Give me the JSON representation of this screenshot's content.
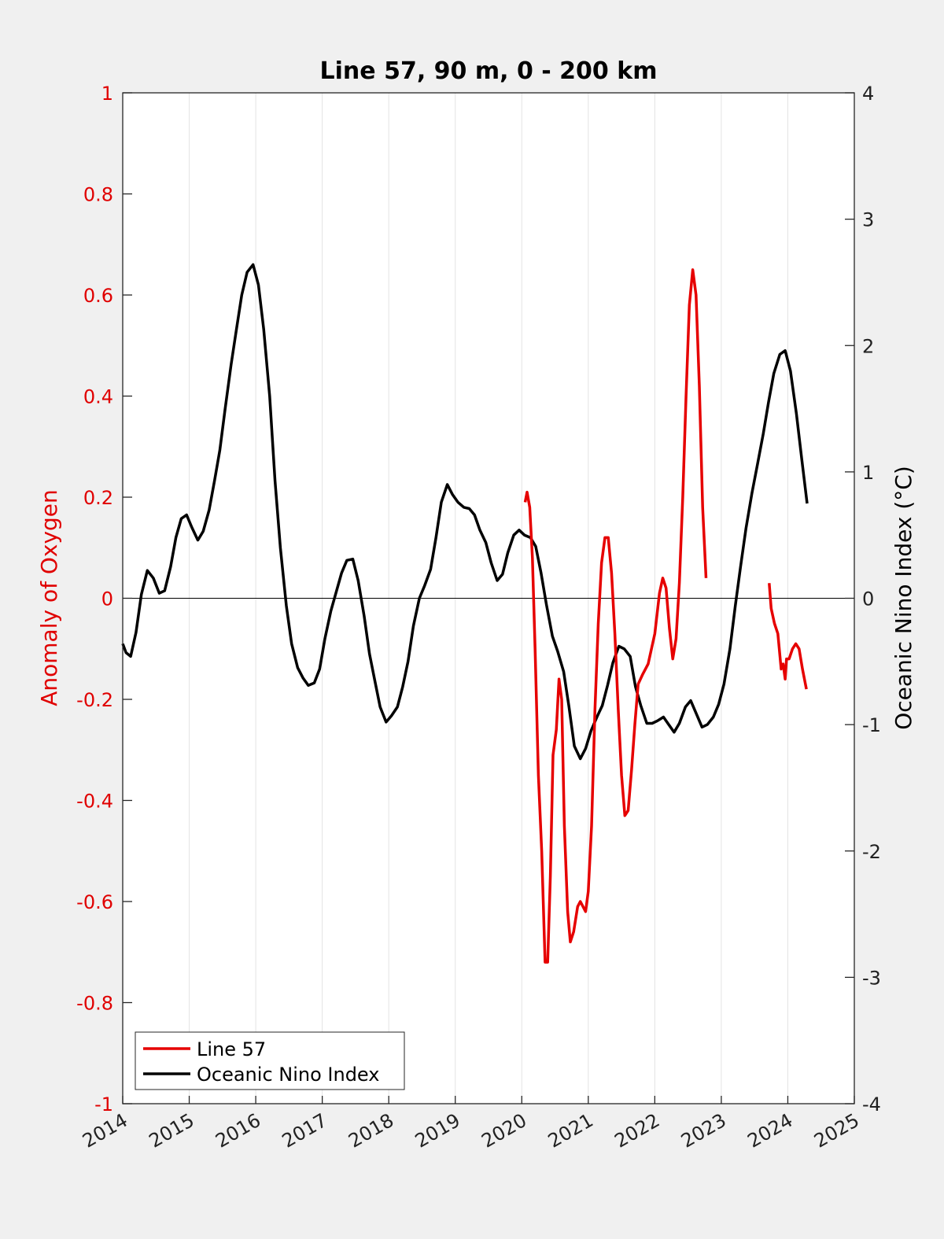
{
  "chart_data": {
    "type": "line",
    "title": "Line 57, 90 m, 0 - 200 km",
    "ylabel_left": "Anomaly of Oxygen",
    "ylabel_right": "Oceanic Nino Index (°C)",
    "xlim": [
      2014,
      2025
    ],
    "ylim_left": [
      -1,
      1
    ],
    "ylim_right": [
      -4,
      4
    ],
    "x_ticks": [
      "2014",
      "2015",
      "2016",
      "2017",
      "2018",
      "2019",
      "2020",
      "2021",
      "2022",
      "2023",
      "2024",
      "2025"
    ],
    "y_left_ticks": [
      "-1",
      "-0.8",
      "-0.6",
      "-0.4",
      "-0.2",
      "0",
      "0.2",
      "0.4",
      "0.6",
      "0.8",
      "1"
    ],
    "y_right_ticks": [
      "-4",
      "-3",
      "-2",
      "-1",
      "0",
      "1",
      "2",
      "3",
      "4"
    ],
    "grid": "vertical",
    "zero_line": true,
    "legend": {
      "position": "bottom-left",
      "entries": [
        "Line 57",
        "Oceanic Nino Index"
      ]
    },
    "colors": {
      "line57": "#e60000",
      "oni": "#000000",
      "left_axis": "#e00000"
    },
    "series": [
      {
        "name": "Line 57",
        "axis": "left",
        "segments": [
          [
            [
              2020.05,
              0.19
            ],
            [
              2020.08,
              0.21
            ],
            [
              2020.12,
              0.18
            ],
            [
              2020.16,
              0.08
            ],
            [
              2020.2,
              -0.1
            ],
            [
              2020.25,
              -0.35
            ],
            [
              2020.3,
              -0.5
            ],
            [
              2020.35,
              -0.72
            ],
            [
              2020.39,
              -0.72
            ],
            [
              2020.43,
              -0.55
            ],
            [
              2020.47,
              -0.31
            ],
            [
              2020.52,
              -0.26
            ],
            [
              2020.56,
              -0.16
            ],
            [
              2020.6,
              -0.2
            ],
            [
              2020.64,
              -0.45
            ],
            [
              2020.69,
              -0.62
            ],
            [
              2020.73,
              -0.68
            ],
            [
              2020.78,
              -0.66
            ],
            [
              2020.84,
              -0.61
            ],
            [
              2020.88,
              -0.6
            ],
            [
              2020.92,
              -0.61
            ],
            [
              2020.96,
              -0.62
            ],
            [
              2021.0,
              -0.58
            ],
            [
              2021.05,
              -0.45
            ],
            [
              2021.1,
              -0.22
            ],
            [
              2021.15,
              -0.05
            ],
            [
              2021.2,
              0.07
            ],
            [
              2021.25,
              0.12
            ],
            [
              2021.3,
              0.12
            ],
            [
              2021.35,
              0.05
            ],
            [
              2021.4,
              -0.07
            ],
            [
              2021.45,
              -0.22
            ],
            [
              2021.5,
              -0.35
            ],
            [
              2021.55,
              -0.43
            ],
            [
              2021.6,
              -0.42
            ],
            [
              2021.65,
              -0.34
            ],
            [
              2021.7,
              -0.25
            ],
            [
              2021.75,
              -0.17
            ],
            [
              2021.82,
              -0.15
            ],
            [
              2021.9,
              -0.13
            ],
            [
              2022.0,
              -0.07
            ],
            [
              2022.07,
              0.01
            ],
            [
              2022.12,
              0.04
            ],
            [
              2022.17,
              0.02
            ],
            [
              2022.22,
              -0.06
            ],
            [
              2022.27,
              -0.12
            ],
            [
              2022.32,
              -0.08
            ],
            [
              2022.37,
              0.03
            ],
            [
              2022.42,
              0.2
            ],
            [
              2022.47,
              0.4
            ],
            [
              2022.52,
              0.58
            ],
            [
              2022.57,
              0.65
            ],
            [
              2022.62,
              0.6
            ],
            [
              2022.67,
              0.42
            ],
            [
              2022.72,
              0.18
            ],
            [
              2022.77,
              0.04
            ]
          ],
          [
            [
              2023.72,
              0.03
            ],
            [
              2023.75,
              -0.02
            ],
            [
              2023.8,
              -0.05
            ],
            [
              2023.85,
              -0.07
            ],
            [
              2023.9,
              -0.14
            ],
            [
              2023.93,
              -0.13
            ],
            [
              2023.96,
              -0.16
            ],
            [
              2023.98,
              -0.12
            ],
            [
              2024.02,
              -0.12
            ],
            [
              2024.07,
              -0.1
            ],
            [
              2024.12,
              -0.09
            ],
            [
              2024.17,
              -0.1
            ],
            [
              2024.22,
              -0.14
            ],
            [
              2024.28,
              -0.18
            ]
          ]
        ]
      },
      {
        "name": "Oceanic Nino Index",
        "axis": "right",
        "points": [
          [
            2014.0,
            -0.36
          ],
          [
            2014.05,
            -0.43
          ],
          [
            2014.12,
            -0.46
          ],
          [
            2014.2,
            -0.27
          ],
          [
            2014.28,
            0.03
          ],
          [
            2014.37,
            0.22
          ],
          [
            2014.46,
            0.16
          ],
          [
            2014.55,
            0.04
          ],
          [
            2014.63,
            0.06
          ],
          [
            2014.72,
            0.25
          ],
          [
            2014.8,
            0.48
          ],
          [
            2014.88,
            0.63
          ],
          [
            2014.96,
            0.66
          ],
          [
            2015.04,
            0.56
          ],
          [
            2015.13,
            0.46
          ],
          [
            2015.21,
            0.53
          ],
          [
            2015.3,
            0.7
          ],
          [
            2015.38,
            0.93
          ],
          [
            2015.46,
            1.17
          ],
          [
            2015.54,
            1.5
          ],
          [
            2015.63,
            1.85
          ],
          [
            2015.71,
            2.13
          ],
          [
            2015.79,
            2.4
          ],
          [
            2015.87,
            2.58
          ],
          [
            2015.96,
            2.64
          ],
          [
            2016.04,
            2.48
          ],
          [
            2016.12,
            2.13
          ],
          [
            2016.21,
            1.6
          ],
          [
            2016.29,
            0.93
          ],
          [
            2016.37,
            0.4
          ],
          [
            2016.46,
            -0.06
          ],
          [
            2016.54,
            -0.36
          ],
          [
            2016.63,
            -0.55
          ],
          [
            2016.71,
            -0.63
          ],
          [
            2016.79,
            -0.69
          ],
          [
            2016.88,
            -0.67
          ],
          [
            2016.96,
            -0.56
          ],
          [
            2017.04,
            -0.32
          ],
          [
            2017.13,
            -0.1
          ],
          [
            2017.21,
            0.05
          ],
          [
            2017.29,
            0.2
          ],
          [
            2017.37,
            0.3
          ],
          [
            2017.46,
            0.31
          ],
          [
            2017.54,
            0.14
          ],
          [
            2017.63,
            -0.14
          ],
          [
            2017.71,
            -0.44
          ],
          [
            2017.79,
            -0.65
          ],
          [
            2017.87,
            -0.86
          ],
          [
            2017.96,
            -0.98
          ],
          [
            2018.04,
            -0.93
          ],
          [
            2018.13,
            -0.86
          ],
          [
            2018.21,
            -0.7
          ],
          [
            2018.29,
            -0.5
          ],
          [
            2018.37,
            -0.22
          ],
          [
            2018.46,
            0.0
          ],
          [
            2018.54,
            0.1
          ],
          [
            2018.63,
            0.23
          ],
          [
            2018.71,
            0.48
          ],
          [
            2018.79,
            0.76
          ],
          [
            2018.88,
            0.9
          ],
          [
            2018.96,
            0.82
          ],
          [
            2019.04,
            0.76
          ],
          [
            2019.13,
            0.72
          ],
          [
            2019.21,
            0.71
          ],
          [
            2019.29,
            0.66
          ],
          [
            2019.37,
            0.54
          ],
          [
            2019.46,
            0.44
          ],
          [
            2019.54,
            0.28
          ],
          [
            2019.63,
            0.14
          ],
          [
            2019.71,
            0.19
          ],
          [
            2019.79,
            0.36
          ],
          [
            2019.88,
            0.5
          ],
          [
            2019.96,
            0.54
          ],
          [
            2020.04,
            0.5
          ],
          [
            2020.13,
            0.48
          ],
          [
            2020.21,
            0.41
          ],
          [
            2020.29,
            0.2
          ],
          [
            2020.37,
            -0.05
          ],
          [
            2020.46,
            -0.3
          ],
          [
            2020.54,
            -0.42
          ],
          [
            2020.63,
            -0.58
          ],
          [
            2020.71,
            -0.86
          ],
          [
            2020.79,
            -1.17
          ],
          [
            2020.88,
            -1.27
          ],
          [
            2020.96,
            -1.19
          ],
          [
            2021.04,
            -1.05
          ],
          [
            2021.13,
            -0.94
          ],
          [
            2021.21,
            -0.85
          ],
          [
            2021.29,
            -0.69
          ],
          [
            2021.37,
            -0.51
          ],
          [
            2021.46,
            -0.38
          ],
          [
            2021.54,
            -0.4
          ],
          [
            2021.63,
            -0.46
          ],
          [
            2021.71,
            -0.7
          ],
          [
            2021.79,
            -0.85
          ],
          [
            2021.88,
            -0.99
          ],
          [
            2021.96,
            -0.99
          ],
          [
            2022.04,
            -0.97
          ],
          [
            2022.13,
            -0.94
          ],
          [
            2022.21,
            -1.0
          ],
          [
            2022.29,
            -1.06
          ],
          [
            2022.37,
            -0.99
          ],
          [
            2022.46,
            -0.86
          ],
          [
            2022.54,
            -0.81
          ],
          [
            2022.63,
            -0.92
          ],
          [
            2022.71,
            -1.02
          ],
          [
            2022.79,
            -1.0
          ],
          [
            2022.88,
            -0.94
          ],
          [
            2022.96,
            -0.84
          ],
          [
            2023.04,
            -0.68
          ],
          [
            2023.13,
            -0.4
          ],
          [
            2023.21,
            -0.06
          ],
          [
            2023.29,
            0.25
          ],
          [
            2023.37,
            0.55
          ],
          [
            2023.46,
            0.83
          ],
          [
            2023.54,
            1.05
          ],
          [
            2023.63,
            1.3
          ],
          [
            2023.71,
            1.55
          ],
          [
            2023.79,
            1.78
          ],
          [
            2023.88,
            1.93
          ],
          [
            2023.96,
            1.96
          ],
          [
            2024.04,
            1.8
          ],
          [
            2024.13,
            1.46
          ],
          [
            2024.21,
            1.1
          ],
          [
            2024.29,
            0.75
          ]
        ]
      }
    ]
  }
}
